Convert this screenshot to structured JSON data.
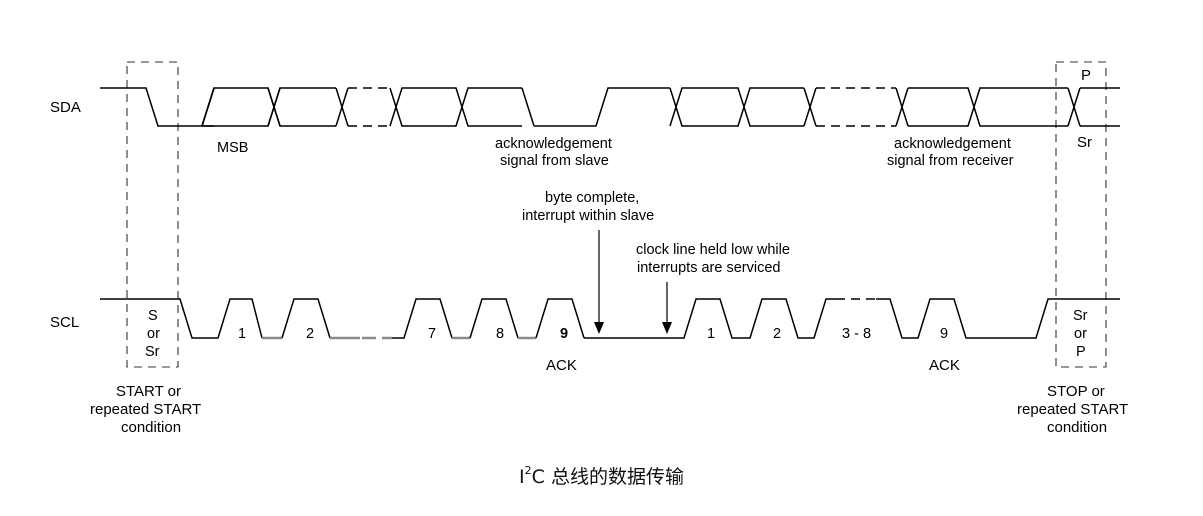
{
  "signals": {
    "sda": "SDA",
    "scl": "SCL"
  },
  "sda_labels": {
    "msb": "MSB",
    "ack_slave_1": "acknowledgement",
    "ack_slave_2": "signal from slave",
    "ack_recv_1": "acknowledgement",
    "ack_recv_2": "signal from receiver",
    "stop_p": "P",
    "stop_sr": "Sr"
  },
  "notes": {
    "byte_complete_1": "byte complete,",
    "byte_complete_2": "interrupt within slave",
    "clock_held_1": "clock line held low while",
    "clock_held_2": "interrupts are serviced"
  },
  "clock_labels": [
    "1",
    "2",
    "7",
    "8",
    "9",
    "1",
    "2",
    "3 - 8",
    "9"
  ],
  "ack_labels": [
    "ACK",
    "ACK"
  ],
  "start_box": {
    "line1": "S",
    "line2": "or",
    "line3": "Sr"
  },
  "stop_box": {
    "line1": "Sr",
    "line2": "or",
    "line3": "P"
  },
  "conditions": {
    "start_1": "START or",
    "start_2": "repeated START",
    "start_3": "condition",
    "stop_1": "STOP or",
    "stop_2": "repeated START",
    "stop_3": "condition"
  },
  "caption": {
    "prefix": "I",
    "sup": "2",
    "rest": "C 总线的数据传输"
  }
}
